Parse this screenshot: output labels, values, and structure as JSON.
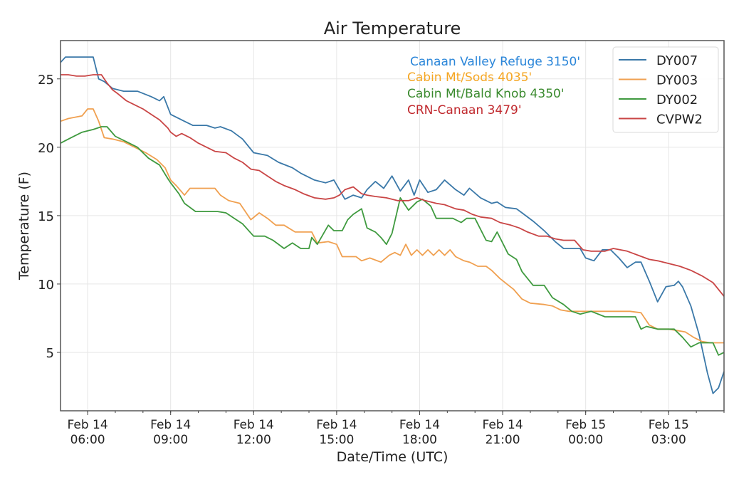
{
  "chart_data": {
    "type": "line",
    "title": "Air Temperature",
    "xlabel": "Date/Time (UTC)",
    "ylabel": "Temperature (F)",
    "x_units": "hours since Feb 14 00:00 UTC",
    "xlim": [
      5.02,
      29.0
    ],
    "ylim": [
      0.73,
      27.8
    ],
    "grid": true,
    "legend_position": "top-right",
    "yticks": [
      5,
      10,
      15,
      20,
      25
    ],
    "ytick_labels": [
      "5",
      "10",
      "15",
      "20",
      "25"
    ],
    "xticks": [
      6,
      9,
      12,
      15,
      18,
      21,
      24,
      27
    ],
    "xtick_labels": [
      [
        "Feb 14",
        "06:00"
      ],
      [
        "Feb 14",
        "09:00"
      ],
      [
        "Feb 14",
        "12:00"
      ],
      [
        "Feb 14",
        "15:00"
      ],
      [
        "Feb 14",
        "18:00"
      ],
      [
        "Feb 14",
        "21:00"
      ],
      [
        "Feb 15",
        "00:00"
      ],
      [
        "Feb 15",
        "03:00"
      ]
    ],
    "annotations": [
      {
        "text": "Canaan Valley Refuge 3150'",
        "color": "#2b86d9"
      },
      {
        "text": "Cabin Mt/Sods 4035'",
        "color": "#f5a623"
      },
      {
        "text": "Cabin Mt/Bald Knob 4350'",
        "color": "#3a8a2e"
      },
      {
        "text": "CRN-Canaan 3479'",
        "color": "#c0282d"
      }
    ],
    "series": [
      {
        "name": "DY007",
        "color": "#3a78a8",
        "x": [
          5.02,
          5.2,
          6.2,
          6.4,
          6.6,
          6.9,
          7.3,
          7.8,
          8.3,
          8.6,
          8.75,
          9.0,
          9.4,
          9.8,
          10.3,
          10.6,
          10.8,
          11.2,
          11.6,
          12.0,
          12.5,
          12.9,
          13.4,
          13.7,
          14.2,
          14.6,
          14.9,
          15.1,
          15.3,
          15.6,
          15.9,
          16.1,
          16.4,
          16.7,
          17.0,
          17.3,
          17.6,
          17.8,
          18.0,
          18.3,
          18.6,
          18.9,
          19.3,
          19.6,
          19.8,
          20.2,
          20.6,
          20.8,
          21.1,
          21.5,
          21.7,
          22.1,
          22.5,
          22.9,
          23.2,
          23.8,
          24.0,
          24.3,
          24.6,
          24.9,
          25.2,
          25.5,
          25.8,
          26.0,
          26.3,
          26.6,
          26.9,
          27.2,
          27.35,
          27.5,
          27.8,
          28.1,
          28.4,
          28.6,
          28.8,
          29.0
        ],
        "values": [
          26.2,
          26.6,
          26.6,
          25.0,
          24.8,
          24.3,
          24.1,
          24.1,
          23.7,
          23.4,
          23.7,
          22.4,
          22.0,
          21.6,
          21.6,
          21.4,
          21.5,
          21.2,
          20.6,
          19.6,
          19.4,
          18.9,
          18.5,
          18.1,
          17.6,
          17.4,
          17.6,
          16.9,
          16.2,
          16.5,
          16.3,
          16.9,
          17.5,
          17.0,
          17.9,
          16.8,
          17.6,
          16.5,
          17.6,
          16.7,
          16.9,
          17.6,
          16.9,
          16.5,
          17.0,
          16.3,
          15.9,
          16.0,
          15.6,
          15.5,
          15.2,
          14.6,
          13.9,
          13.1,
          12.6,
          12.6,
          11.9,
          11.7,
          12.5,
          12.5,
          11.9,
          11.2,
          11.6,
          11.6,
          10.2,
          8.7,
          9.8,
          9.9,
          10.2,
          9.8,
          8.4,
          6.3,
          3.5,
          2.0,
          2.4,
          3.6
        ]
      },
      {
        "name": "DY003",
        "color": "#f0a050",
        "x": [
          5.02,
          5.3,
          5.8,
          6.0,
          6.2,
          6.4,
          6.6,
          6.9,
          7.3,
          7.7,
          8.1,
          8.5,
          8.8,
          9.0,
          9.2,
          9.5,
          9.7,
          10.0,
          10.6,
          10.8,
          11.1,
          11.5,
          11.9,
          12.2,
          12.5,
          12.8,
          13.1,
          13.5,
          14.1,
          14.3,
          14.7,
          15.0,
          15.2,
          15.7,
          15.9,
          16.2,
          16.6,
          16.9,
          17.1,
          17.3,
          17.5,
          17.7,
          17.9,
          18.1,
          18.3,
          18.5,
          18.7,
          18.9,
          19.1,
          19.3,
          19.6,
          19.8,
          20.1,
          20.4,
          20.6,
          20.9,
          21.4,
          21.7,
          22.0,
          22.5,
          22.8,
          23.1,
          23.4,
          23.6,
          23.8,
          24.0,
          24.5,
          25.0,
          25.6,
          26.0,
          26.3,
          26.6,
          27.0,
          27.3,
          27.6,
          27.9,
          28.2,
          28.5,
          29.0
        ],
        "values": [
          21.9,
          22.1,
          22.3,
          22.8,
          22.8,
          21.9,
          20.7,
          20.6,
          20.4,
          20.0,
          19.6,
          19.1,
          18.5,
          17.6,
          17.2,
          16.5,
          17.0,
          17.0,
          17.0,
          16.5,
          16.1,
          15.9,
          14.7,
          15.2,
          14.8,
          14.3,
          14.3,
          13.8,
          13.8,
          13.0,
          13.1,
          12.9,
          12.0,
          12.0,
          11.7,
          11.9,
          11.6,
          12.1,
          12.3,
          12.1,
          12.9,
          12.1,
          12.5,
          12.1,
          12.5,
          12.1,
          12.5,
          12.1,
          12.5,
          12.0,
          11.7,
          11.6,
          11.3,
          11.3,
          11.0,
          10.4,
          9.6,
          8.9,
          8.6,
          8.5,
          8.4,
          8.1,
          8.0,
          8.0,
          8.0,
          8.0,
          8.0,
          8.0,
          8.0,
          7.9,
          7.0,
          6.7,
          6.7,
          6.6,
          6.5,
          6.1,
          5.8,
          5.7,
          5.7
        ]
      },
      {
        "name": "DY002",
        "color": "#3f9a3f",
        "x": [
          5.02,
          5.4,
          5.8,
          6.2,
          6.5,
          6.7,
          7.0,
          7.4,
          7.8,
          8.2,
          8.6,
          8.9,
          9.0,
          9.3,
          9.5,
          9.9,
          10.7,
          11.0,
          11.3,
          11.6,
          12.0,
          12.4,
          12.7,
          13.1,
          13.4,
          13.7,
          14.0,
          14.1,
          14.3,
          14.7,
          14.9,
          15.2,
          15.4,
          15.6,
          15.9,
          16.1,
          16.4,
          16.6,
          16.8,
          17.0,
          17.3,
          17.6,
          17.9,
          18.1,
          18.4,
          18.6,
          18.9,
          19.2,
          19.5,
          19.7,
          20.0,
          20.4,
          20.6,
          20.8,
          21.2,
          21.5,
          21.7,
          22.1,
          22.5,
          22.8,
          23.2,
          23.5,
          23.8,
          24.2,
          24.7,
          25.0,
          25.5,
          25.8,
          26.0,
          26.2,
          26.6,
          26.8,
          27.2,
          27.5,
          27.8,
          28.1,
          28.6,
          28.8,
          29.0
        ],
        "values": [
          20.3,
          20.7,
          21.1,
          21.3,
          21.5,
          21.5,
          20.8,
          20.4,
          20.0,
          19.2,
          18.7,
          17.7,
          17.4,
          16.6,
          15.9,
          15.3,
          15.3,
          15.2,
          14.8,
          14.4,
          13.5,
          13.5,
          13.2,
          12.6,
          13.0,
          12.6,
          12.6,
          13.4,
          12.9,
          14.3,
          13.9,
          13.9,
          14.7,
          15.1,
          15.5,
          14.1,
          13.8,
          13.4,
          12.9,
          13.7,
          16.3,
          15.4,
          16.0,
          16.2,
          15.7,
          14.8,
          14.8,
          14.8,
          14.5,
          14.8,
          14.8,
          13.2,
          13.1,
          13.8,
          12.2,
          11.8,
          10.9,
          9.9,
          9.9,
          9.0,
          8.5,
          8.0,
          7.8,
          8.0,
          7.6,
          7.6,
          7.6,
          7.6,
          6.7,
          6.9,
          6.7,
          6.7,
          6.7,
          6.1,
          5.4,
          5.7,
          5.7,
          4.8,
          5.0
        ]
      },
      {
        "name": "CVPW2",
        "color": "#c94545",
        "x": [
          5.02,
          5.3,
          5.6,
          5.9,
          6.2,
          6.5,
          6.7,
          6.9,
          7.1,
          7.4,
          7.7,
          8.0,
          8.3,
          8.6,
          8.9,
          9.0,
          9.2,
          9.4,
          9.7,
          10.0,
          10.3,
          10.6,
          11.0,
          11.3,
          11.6,
          11.9,
          12.2,
          12.5,
          12.8,
          13.1,
          13.5,
          13.8,
          14.2,
          14.6,
          14.9,
          15.1,
          15.3,
          15.6,
          15.9,
          16.1,
          16.4,
          16.8,
          17.2,
          17.6,
          17.9,
          18.2,
          18.6,
          18.9,
          19.3,
          19.6,
          19.9,
          20.2,
          20.6,
          20.9,
          21.3,
          21.6,
          21.9,
          22.3,
          22.6,
          22.9,
          23.2,
          23.6,
          23.9,
          24.2,
          24.7,
          25.0,
          25.5,
          25.9,
          26.3,
          26.6,
          27.0,
          27.4,
          27.8,
          28.2,
          28.6,
          29.0
        ],
        "values": [
          25.3,
          25.3,
          25.2,
          25.2,
          25.3,
          25.3,
          24.7,
          24.2,
          23.9,
          23.4,
          23.1,
          22.8,
          22.4,
          22.0,
          21.4,
          21.1,
          20.8,
          21.0,
          20.7,
          20.3,
          20.0,
          19.7,
          19.6,
          19.2,
          18.9,
          18.4,
          18.3,
          17.9,
          17.5,
          17.2,
          16.9,
          16.6,
          16.3,
          16.2,
          16.3,
          16.5,
          16.9,
          17.1,
          16.6,
          16.5,
          16.4,
          16.3,
          16.1,
          16.1,
          16.3,
          16.1,
          15.9,
          15.8,
          15.5,
          15.4,
          15.1,
          14.9,
          14.8,
          14.5,
          14.3,
          14.1,
          13.8,
          13.5,
          13.5,
          13.3,
          13.2,
          13.2,
          12.5,
          12.4,
          12.4,
          12.6,
          12.4,
          12.1,
          11.8,
          11.7,
          11.5,
          11.3,
          11.0,
          10.6,
          10.1,
          9.1
        ]
      }
    ]
  }
}
